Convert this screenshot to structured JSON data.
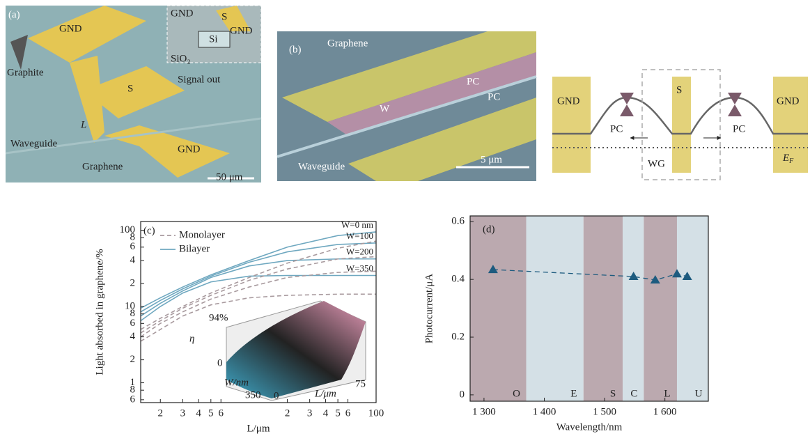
{
  "chart_data": [
    {
      "type": "line",
      "label": "(c)",
      "xlabel": "L/μm",
      "ylabel": "Light absorbed in graphene/%",
      "xlog": true,
      "ylog": true,
      "xlim": [
        1.4,
        100
      ],
      "ylim": [
        0.55,
        130
      ],
      "xticks": [
        2,
        3,
        4,
        5,
        6,
        {
          "value": 20,
          "label": "2"
        },
        {
          "value": 30,
          "label": "3"
        },
        {
          "value": 40,
          "label": "4"
        },
        {
          "value": 50,
          "label": "5"
        },
        {
          "value": 60,
          "label": "6"
        },
        100
      ],
      "yticks": [
        100,
        {
          "value": 80,
          "label": "8"
        },
        {
          "value": 60,
          "label": "6"
        },
        {
          "value": 40,
          "label": "4"
        },
        {
          "value": 20,
          "label": "2"
        },
        10,
        8,
        6,
        4,
        2,
        1,
        {
          "value": 0.8,
          "label": "8"
        },
        {
          "value": 0.6,
          "label": "6"
        }
      ],
      "legend": [
        {
          "label": "Monolayer",
          "dash": "6,4",
          "color": "#a89a9e"
        },
        {
          "label": "Bilayer",
          "dash": "none",
          "color": "#6fa8c0"
        }
      ],
      "x": [
        1.4,
        2,
        3,
        5,
        10,
        20,
        50,
        100
      ],
      "series": [
        {
          "name": "W=0 nm",
          "layer": 1,
          "values": [
            9.5,
            13,
            18,
            26,
            40,
            60,
            85,
            95
          ]
        },
        {
          "name": "W=100",
          "layer": 1,
          "values": [
            8.5,
            12,
            17,
            25,
            38,
            52,
            65,
            68
          ]
        },
        {
          "name": "W=200",
          "layer": 1,
          "values": [
            7.5,
            11,
            16,
            24,
            34,
            40,
            42,
            42
          ]
        },
        {
          "name": "W=350",
          "layer": 1,
          "values": [
            6.5,
            10,
            15,
            21,
            25,
            25.5,
            25.5,
            25.5
          ]
        },
        {
          "layer": 0,
          "values": [
            5,
            7,
            10,
            15,
            24,
            37,
            58,
            72
          ]
        },
        {
          "layer": 0,
          "values": [
            4.5,
            6.5,
            9.5,
            14,
            22,
            31,
            42,
            45
          ]
        },
        {
          "layer": 0,
          "values": [
            4,
            6,
            8.5,
            12.5,
            18,
            24,
            28,
            29
          ]
        },
        {
          "layer": 0,
          "values": [
            3.5,
            5,
            7.5,
            10.5,
            13,
            14,
            14.5,
            14.5
          ]
        }
      ],
      "inset": {
        "zmax": "94%",
        "zlabel": "η",
        "zmin": "0",
        "ylabel": "W/nm",
        "ymax": "350",
        "xmin": "0",
        "xlabel": "L/μm",
        "xmax": "75"
      }
    },
    {
      "type": "scatter",
      "label": "(d)",
      "xlabel": "Wavelength/nm",
      "ylabel": "Photocurrent/μA",
      "xlim": [
        1277,
        1672
      ],
      "ylim": [
        -0.022,
        0.62
      ],
      "xticks": [
        {
          "value": 1300,
          "label": "1 300"
        },
        {
          "value": 1400,
          "label": "1 400"
        },
        {
          "value": 1500,
          "label": "1 500"
        },
        {
          "value": 1600,
          "label": "1 600"
        }
      ],
      "yticks": [
        0,
        0.2,
        0.4,
        0.6
      ],
      "bands": [
        {
          "name": "O",
          "from": 1277,
          "to": 1370,
          "color": "#bba9af"
        },
        {
          "name": "E",
          "from": 1370,
          "to": 1465,
          "color": "#d4e0e6"
        },
        {
          "name": "S",
          "from": 1465,
          "to": 1530,
          "color": "#bba9af"
        },
        {
          "name": "C",
          "from": 1530,
          "to": 1565,
          "color": "#d4e0e6"
        },
        {
          "name": "L",
          "from": 1565,
          "to": 1620,
          "color": "#bba9af"
        },
        {
          "name": "U",
          "from": 1620,
          "to": 1672,
          "color": "#d4e0e6"
        }
      ],
      "color": "#1d5b7f",
      "x": [
        1315,
        1548,
        1584,
        1620,
        1637
      ],
      "values": [
        0.434,
        0.41,
        0.398,
        0.419,
        0.41
      ]
    }
  ],
  "panel_a": {
    "label": "(a)",
    "gnd_top": "GND",
    "inset_gnd_left": "GND",
    "inset_s": "S",
    "inset_si": "Si",
    "inset_gnd_right": "GND",
    "inset_sio2": "SiO₂",
    "graphite": "Graphite",
    "s": "S",
    "signal_out": "Signal out",
    "l": "L",
    "waveguide": "Waveguide",
    "graphene": "Graphene",
    "gnd_bottom": "GND",
    "scale": "50 μm"
  },
  "panel_b": {
    "label": "(b)",
    "graphene": "Graphene",
    "pc1": "PC",
    "pc2": "PC",
    "w": "W",
    "waveguide": "Waveguide",
    "scale": "5 μm"
  },
  "diagram": {
    "gnd_left": "GND",
    "s": "S",
    "gnd_right": "GND",
    "pc_left": "PC",
    "pc_right": "PC",
    "wg": "WG",
    "ef": {
      "main": "E",
      "sub": "F"
    }
  }
}
